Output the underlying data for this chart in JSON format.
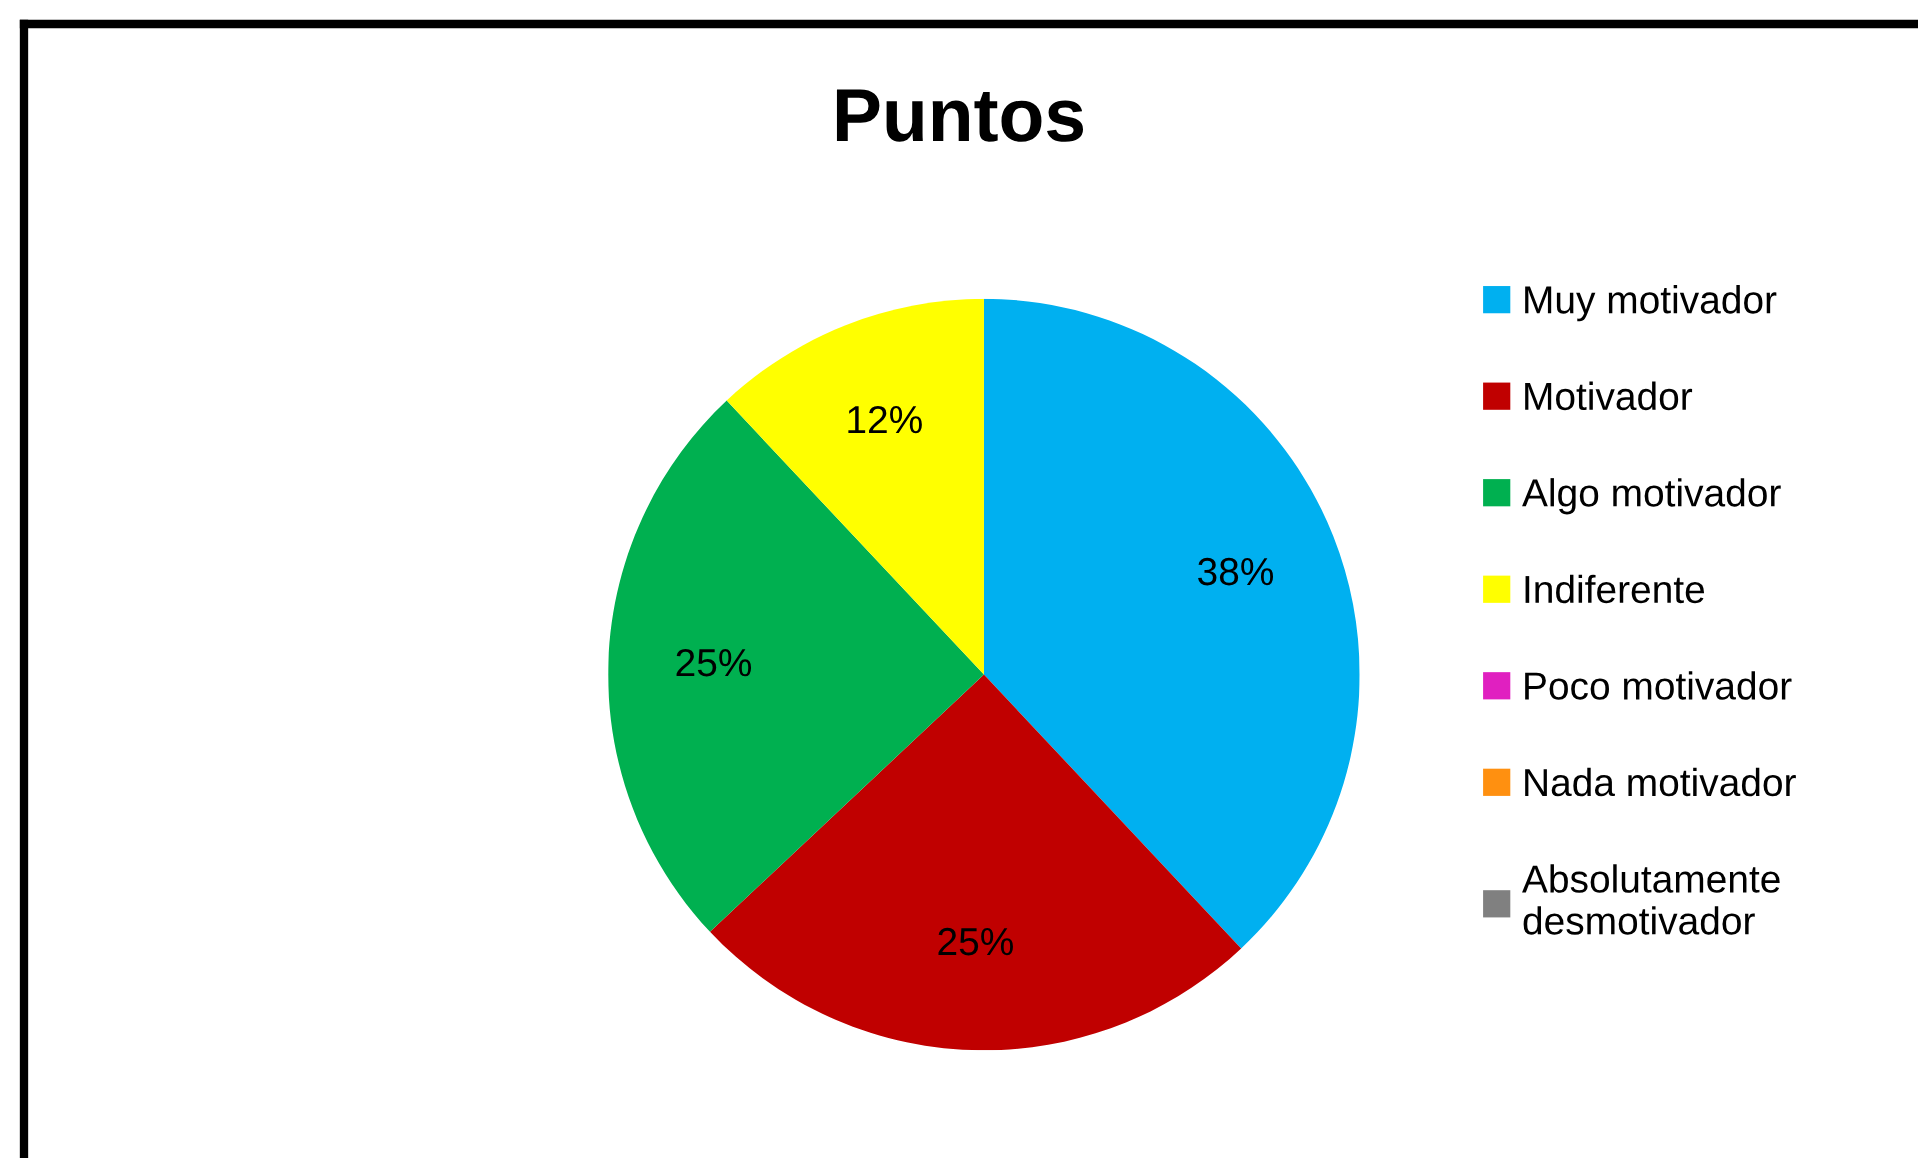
{
  "chart_data": {
    "type": "pie",
    "title": "Puntos",
    "categories": [
      "Muy motivador",
      "Motivador",
      "Algo motivador",
      "Indiferente",
      "Poco motivador",
      "Nada motivador",
      "Absolutamente desmotivador"
    ],
    "values": [
      38,
      25,
      25,
      12,
      0,
      0,
      0
    ],
    "colors": [
      "#00b0f0",
      "#c00000",
      "#00b050",
      "#ffff00",
      "#e020c0",
      "#ff9010",
      "#808080"
    ],
    "value_labels": [
      "38%",
      "25%",
      "25%",
      "12%",
      null,
      null,
      null
    ],
    "legend": "right"
  }
}
